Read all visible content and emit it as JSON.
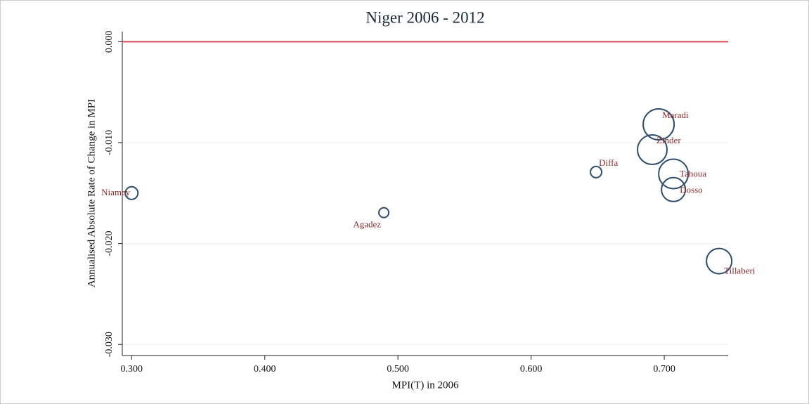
{
  "chart_data": {
    "type": "bubble",
    "title": "Niger 2006 - 2012",
    "x_label": "MPI(T) in 2006",
    "y_label": "Annualised Absolute Rate of Change in MPI",
    "categories": [
      "Niamey",
      "Agadez",
      "Diffa",
      "Maradi",
      "Zinder",
      "Tahoua",
      "Dosso",
      "Tillaberi"
    ],
    "series": [
      {
        "color": "#2e4d6e",
        "label_color": "#8c2d2d",
        "x": [
          0.3,
          0.4894,
          0.6488,
          0.6958,
          0.691,
          0.7069,
          0.7069,
          0.7412
        ],
        "values": [
          -0.015,
          -0.01694,
          -0.01292,
          -0.00819,
          -0.0107,
          -0.0131,
          -0.01465,
          -0.02174
        ],
        "sizes": [
          81,
          49,
          64,
          484,
          441,
          441,
          289,
          324
        ]
      }
    ],
    "xlim": [
      0.293,
      0.748
    ],
    "ylim": [
      -0.0311,
      0.001
    ],
    "xticks": [
      {
        "value": 0.3,
        "label": "0.300"
      },
      {
        "value": 0.4,
        "label": "0.400"
      },
      {
        "value": 0.5,
        "label": "0.500"
      },
      {
        "value": 0.6,
        "label": "0.600"
      },
      {
        "value": 0.7,
        "label": "0.700"
      }
    ],
    "yticks": [
      {
        "value": 0,
        "label": "0.000"
      },
      {
        "value": -0.01,
        "label": "-0.010"
      },
      {
        "value": -0.02,
        "label": "-0.020"
      },
      {
        "value": -0.03,
        "label": "-0.030"
      }
    ],
    "grid": true,
    "reference_line": {
      "value": 0,
      "color": "#d9475a"
    }
  }
}
